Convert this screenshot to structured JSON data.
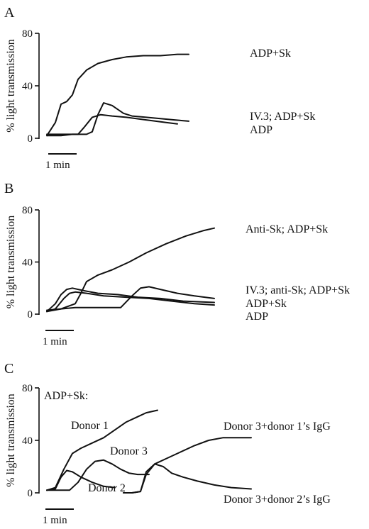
{
  "chart_data": [
    {
      "panel": "A",
      "type": "line",
      "ylabel": "% light transmission",
      "yticks": [
        "0",
        "40",
        "80"
      ],
      "ylim": [
        0,
        80
      ],
      "scale_bar": "1 min",
      "x_unit": "min",
      "series": [
        {
          "name": "ADP+Sk",
          "x": [
            0,
            0.3,
            0.5,
            0.7,
            0.9,
            1.1,
            1.4,
            1.8,
            2.3,
            2.8,
            3.4,
            4.0,
            4.6,
            5.0
          ],
          "y": [
            2,
            12,
            26,
            28,
            33,
            45,
            52,
            57,
            60,
            62,
            63,
            63,
            64,
            64
          ]
        },
        {
          "name": "IV.3; ADP+Sk",
          "x": [
            0,
            0.8,
            1.4,
            1.6,
            1.8,
            2.0,
            2.3,
            2.7,
            3.0,
            3.5,
            4.0,
            4.5,
            5.0
          ],
          "y": [
            3,
            3,
            3,
            5,
            18,
            27,
            25,
            19,
            17,
            16,
            15,
            14,
            13
          ]
        },
        {
          "name": "ADP",
          "x": [
            0,
            0.5,
            0.9,
            1.1,
            1.3,
            1.6,
            1.9,
            2.3,
            2.8,
            3.5,
            4.2,
            4.6
          ],
          "y": [
            2,
            2,
            3,
            3,
            8,
            16,
            18,
            17,
            16,
            14,
            12,
            11
          ]
        }
      ]
    },
    {
      "panel": "B",
      "type": "line",
      "ylabel": "% light transmission",
      "yticks": [
        "0",
        "40",
        "80"
      ],
      "ylim": [
        0,
        80
      ],
      "scale_bar": "1 min",
      "x_unit": "min",
      "series": [
        {
          "name": "Anti-Sk; ADP+Sk",
          "x": [
            0,
            0.5,
            1.0,
            1.2,
            1.4,
            1.8,
            2.3,
            2.9,
            3.5,
            4.2,
            4.9,
            5.5,
            5.9
          ],
          "y": [
            2,
            4,
            8,
            16,
            25,
            30,
            34,
            40,
            47,
            54,
            60,
            64,
            66
          ]
        },
        {
          "name": "IV.3; anti-Sk; ADP+Sk",
          "x": [
            0,
            1.0,
            2.0,
            2.6,
            3.0,
            3.3,
            3.6,
            4.0,
            4.6,
            5.2,
            5.9
          ],
          "y": [
            3,
            5,
            5,
            5,
            14,
            20,
            21,
            19,
            16,
            14,
            12
          ]
        },
        {
          "name": "ADP+Sk",
          "x": [
            0,
            0.3,
            0.5,
            0.7,
            0.9,
            1.3,
            1.8,
            2.5,
            3.2,
            4.0,
            4.8,
            5.9
          ],
          "y": [
            2,
            8,
            15,
            19,
            20,
            18,
            16,
            15,
            13,
            12,
            10,
            9
          ]
        },
        {
          "name": "ADP",
          "x": [
            0,
            0.3,
            0.6,
            0.8,
            1.0,
            1.4,
            2.0,
            2.8,
            3.6,
            4.4,
            5.2,
            5.9
          ],
          "y": [
            2,
            4,
            12,
            16,
            17,
            16,
            14,
            13,
            12,
            10,
            8,
            7
          ]
        }
      ]
    },
    {
      "panel": "C",
      "type": "line",
      "title": "ADP+Sk:",
      "ylabel": "% light transmission",
      "yticks": [
        "0",
        "40",
        "80"
      ],
      "ylim": [
        0,
        80
      ],
      "scale_bar": "1 min",
      "x_unit": "min",
      "series": [
        {
          "name": "Donor 1",
          "x": [
            0,
            0.3,
            0.6,
            0.9,
            1.2,
            1.6,
            2.0,
            2.4,
            2.8,
            3.2,
            3.5,
            3.9
          ],
          "y": [
            2,
            4,
            18,
            30,
            34,
            38,
            42,
            48,
            54,
            58,
            61,
            63
          ]
        },
        {
          "name": "Donor 3",
          "x": [
            0,
            0.8,
            1.1,
            1.4,
            1.7,
            2.0,
            2.3,
            2.6,
            2.9,
            3.2,
            3.6
          ],
          "y": [
            2,
            2,
            8,
            18,
            24,
            25,
            22,
            18,
            15,
            14,
            14
          ]
        },
        {
          "name": "Donor 2",
          "x": [
            0,
            0.3,
            0.5,
            0.7,
            0.9,
            1.2,
            1.6,
            2.0,
            2.4
          ],
          "y": [
            2,
            3,
            12,
            17,
            16,
            12,
            8,
            5,
            4
          ]
        },
        {
          "name": "Donor 3+donor 1’s IgG",
          "x": [
            2.7,
            3.0,
            3.3,
            3.5,
            3.8,
            4.2,
            4.7,
            5.2,
            5.7,
            6.2,
            6.7,
            7.2
          ],
          "y": [
            0,
            0,
            1,
            14,
            22,
            26,
            31,
            36,
            40,
            42,
            42,
            42
          ]
        },
        {
          "name": "Donor 3+donor 2’s IgG",
          "x": [
            2.7,
            3.0,
            3.3,
            3.5,
            3.8,
            4.1,
            4.4,
            4.8,
            5.3,
            5.9,
            6.5,
            7.2
          ],
          "y": [
            0,
            0,
            1,
            16,
            22,
            20,
            15,
            12,
            9,
            6,
            4,
            3
          ]
        }
      ]
    }
  ]
}
